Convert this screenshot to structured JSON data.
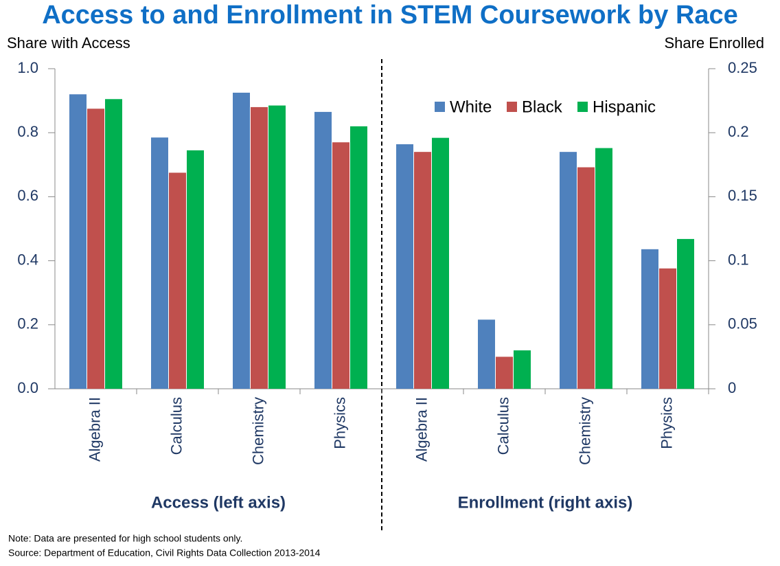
{
  "chart_data": {
    "type": "bar",
    "title": "Access to and Enrollment in STEM Coursework by Race",
    "y_label": "Share with Access",
    "y2_label": "Share Enrolled",
    "note": "Note: Data are presented  for high  school students  only.",
    "source": "Source: Department  of Education,  Civil Rights Data Collection 2013-2014",
    "legend": "upper right",
    "series": [
      {
        "name": "White",
        "color": "#4f81bd"
      },
      {
        "name": "Black",
        "color": "#c0504d"
      },
      {
        "name": "Hispanic",
        "color": "#00b050"
      }
    ],
    "ylim": [
      0,
      1
    ],
    "yticks": [
      {
        "value": 0,
        "label": "0.0"
      },
      0.2,
      0.4,
      0.6,
      0.8,
      {
        "value": 1,
        "label": "1.0"
      }
    ],
    "y2lim": [
      0,
      0.25
    ],
    "y2ticks": [
      0,
      0.05,
      0.1,
      0.15,
      0.2,
      0.25
    ],
    "panels": [
      {
        "label": "Access (left axis)",
        "axis": "y",
        "categories": [
          "Algebra II",
          "Calculus",
          "Chemistry",
          "Physics"
        ],
        "values": [
          [
            0.92,
            0.785,
            0.925,
            0.865
          ],
          [
            0.875,
            0.675,
            0.88,
            0.77
          ],
          [
            0.905,
            0.745,
            0.885,
            0.82
          ]
        ]
      },
      {
        "label": "Enrollment (right axis)",
        "axis": "y2",
        "categories": [
          "Algebra II",
          "Calculus",
          "Chemistry",
          "Physics"
        ],
        "values": [
          [
            0.191,
            0.054,
            0.185,
            0.109
          ],
          [
            0.185,
            0.025,
            0.173,
            0.094
          ],
          [
            0.196,
            0.03,
            0.188,
            0.117
          ]
        ]
      }
    ]
  }
}
